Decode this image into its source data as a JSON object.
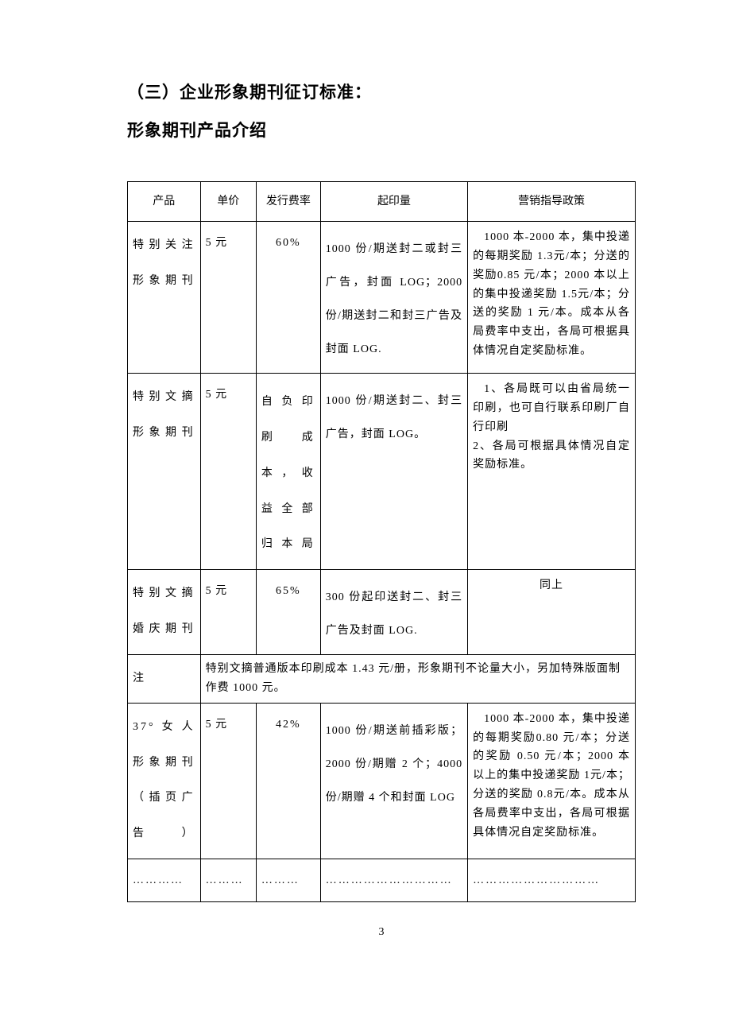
{
  "heading1": "（三）企业形象期刊征订标准：",
  "heading2": "形象期刊产品介绍",
  "table": {
    "headers": {
      "product": "产品",
      "price": "单价",
      "rate": "发行费率",
      "qty": "起印量",
      "policy": "营销指导政策"
    },
    "rows": [
      {
        "product": "特别关注形象期刊",
        "price": "5 元",
        "rate": "60%",
        "qty": "1000 份/期送封二或封三广告，封面 LOG；2000份/期送封二和封三广告及封面 LOG.",
        "policy": "1000 本-2000 本，集中投递的每期奖励 1.3元/本；分送的奖励0.85 元/本；2000 本以上的集中投递奖励 1.5元/本；分送的奖励 1 元/本。成本从各局费率中支出，各局可根据具体情况自定奖励标准。"
      },
      {
        "product": "特别文摘形象期刊",
        "price": "5 元",
        "rate": "自负印刷成本，收益全部归本局",
        "qty": "1000 份/期送封二、封三广告，封面 LOG。",
        "policy": "1、各局既可以由省局统一印刷，也可自行联系印刷厂自行印刷\n2、各局可根据具体情况自定奖励标准。"
      },
      {
        "product": "特别文摘婚庆期刊",
        "price": "5 元",
        "rate": "65%",
        "qty": "300 份起印送封二、封三广告及封面 LOG.",
        "policy": "同上"
      }
    ],
    "note": {
      "label": "注",
      "content": "特别文摘普通版本印刷成本 1.43 元/册，形象期刊不论量大小，另加特殊版面制作费 1000 元。"
    },
    "rows2": [
      {
        "product": "37°女人形象期刊（插页广告）",
        "price": "5 元",
        "rate": "42%",
        "qty": "1000 份/期送前插彩版；2000 份/期赠 2 个；4000 份/期赠 4 个和封面 LOG",
        "policy": "1000 本-2000 本，集中投递的每期奖励0.80 元/本；分送的奖励 0.50 元/本；2000 本以上的集中投递奖励 1元/本；分送的奖励 0.8元/本。成本从各局费率中支出，各局可根据具体情况自定奖励标准。"
      }
    ],
    "ellipsis": {
      "c1": "…………",
      "c2": "………",
      "c3": "………",
      "c4": "…………………………",
      "c5": "…………………………"
    }
  },
  "page_number": "3"
}
